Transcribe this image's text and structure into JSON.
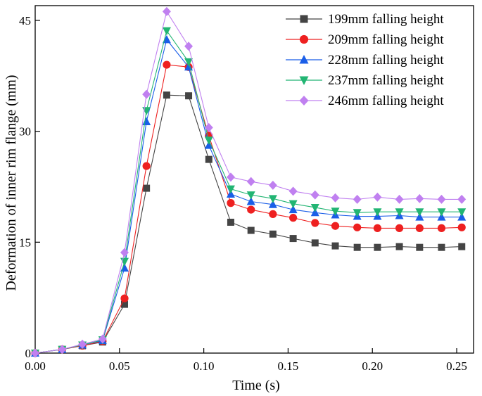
{
  "chart_data": {
    "type": "line",
    "title": "",
    "xlabel": "Time (s)",
    "ylabel": "Deformation of inner rim flange (mm)",
    "xlim": [
      0.0,
      0.26
    ],
    "ylim": [
      0,
      47
    ],
    "xticks": [
      0.0,
      0.05,
      0.1,
      0.15,
      0.2,
      0.25
    ],
    "xtick_labels": [
      "0.00",
      "0.05",
      "0.10",
      "0.15",
      "0.20",
      "0.25"
    ],
    "yticks": [
      0,
      15,
      30,
      45
    ],
    "ytick_labels": [
      "0",
      "15",
      "30",
      "45"
    ],
    "grid": false,
    "legend_position": "top-right",
    "x": [
      0.0,
      0.016,
      0.028,
      0.04,
      0.053,
      0.066,
      0.078,
      0.091,
      0.103,
      0.116,
      0.128,
      0.141,
      0.153,
      0.166,
      0.178,
      0.191,
      0.203,
      0.216,
      0.228,
      0.241,
      0.253
    ],
    "series": [
      {
        "name": "199mm falling height",
        "color": "#444444",
        "marker": "square",
        "values": [
          0,
          0.5,
          1.0,
          1.5,
          6.6,
          22.3,
          34.9,
          34.8,
          26.2,
          17.7,
          16.6,
          16.1,
          15.5,
          14.9,
          14.5,
          14.3,
          14.3,
          14.4,
          14.3,
          14.3,
          14.4
        ]
      },
      {
        "name": "209mm falling height",
        "color": "#ee2020",
        "marker": "circle",
        "values": [
          0,
          0.5,
          1.0,
          1.6,
          7.4,
          25.3,
          39.0,
          38.7,
          29.4,
          20.3,
          19.4,
          18.8,
          18.3,
          17.6,
          17.2,
          17.0,
          16.9,
          16.9,
          16.9,
          16.9,
          17.0
        ]
      },
      {
        "name": "228mm falling height",
        "color": "#1a5ee8",
        "marker": "triangle-up",
        "values": [
          0,
          0.5,
          1.1,
          1.7,
          11.5,
          31.3,
          42.4,
          38.7,
          28.1,
          21.5,
          20.5,
          20.1,
          19.4,
          19.0,
          18.7,
          18.5,
          18.5,
          18.6,
          18.4,
          18.4,
          18.4
        ]
      },
      {
        "name": "237mm falling height",
        "color": "#22b573",
        "marker": "triangle-down",
        "values": [
          0,
          0.5,
          1.1,
          1.8,
          12.4,
          32.8,
          43.6,
          39.4,
          28.8,
          22.2,
          21.4,
          20.9,
          20.2,
          19.7,
          19.2,
          19.0,
          19.1,
          19.1,
          19.1,
          19.1,
          19.1
        ]
      },
      {
        "name": "246mm falling height",
        "color": "#c080f0",
        "marker": "diamond",
        "values": [
          0,
          0.5,
          1.2,
          1.9,
          13.6,
          35.0,
          46.2,
          41.5,
          30.5,
          23.8,
          23.2,
          22.7,
          21.9,
          21.4,
          21.0,
          20.8,
          21.1,
          20.8,
          20.9,
          20.8,
          20.8
        ]
      }
    ]
  }
}
